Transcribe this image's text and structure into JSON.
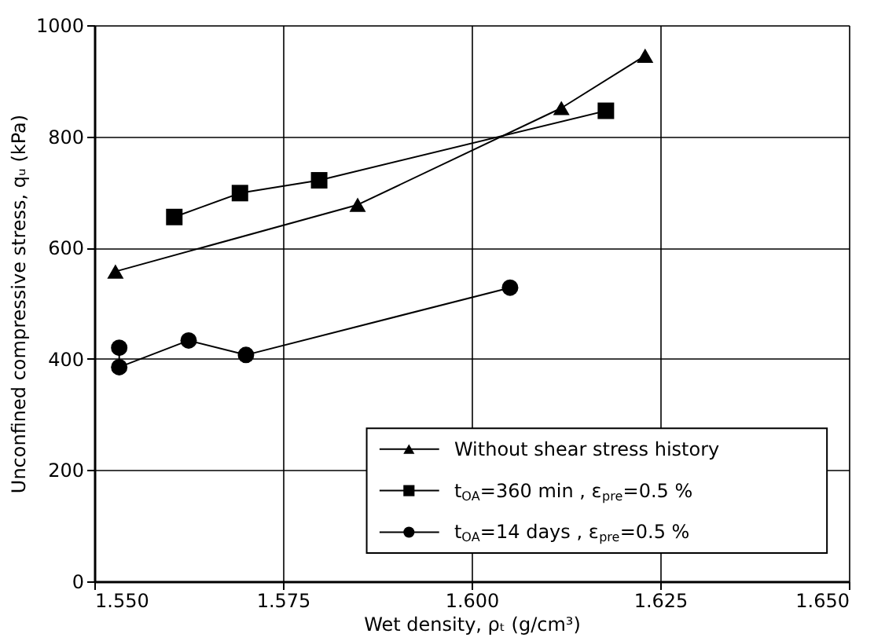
{
  "chart_data": {
    "type": "line",
    "xlabel": "Wet density, ρₜ (g/cm³)",
    "ylabel": "Unconfined compressive stress, qᵤ (kPa)",
    "xlim": [
      1.55,
      1.65
    ],
    "xticks": [
      {
        "value": 1.55,
        "label": "1.550"
      },
      {
        "value": 1.575,
        "label": "1.575"
      },
      {
        "value": 1.6,
        "label": "1.600"
      },
      {
        "value": 1.625,
        "label": "1.625"
      },
      {
        "value": 1.65,
        "label": "1.650"
      }
    ],
    "ylim": [
      0,
      1000
    ],
    "yticks": [
      0,
      200,
      400,
      600,
      800,
      1000
    ],
    "grid": true,
    "legend": "bottom right",
    "line_style": "solid",
    "series": [
      {
        "name": "Without shear stress history",
        "color": "#000000",
        "marker": "triangle",
        "x": [
          1.5528,
          1.5849,
          1.6119,
          1.623
        ],
        "values": [
          557,
          677,
          851,
          945
        ]
      },
      {
        "name": "t$_{OA}$=360 min , ε$_{pre}$=0.5 %",
        "color": "#000000",
        "marker": "square",
        "x": [
          1.5606,
          1.5693,
          1.5798,
          1.6178
        ],
        "values": [
          655,
          698,
          721,
          846
        ]
      },
      {
        "name": "t$_{OA}$=14 days , ε$_{pre}$=0.5 %",
        "color": "#000000",
        "marker": "circle",
        "x": [
          1.5533,
          1.5533,
          1.5625,
          1.5701,
          1.6051
        ],
        "values": [
          420,
          385,
          433,
          407,
          528
        ]
      }
    ]
  }
}
